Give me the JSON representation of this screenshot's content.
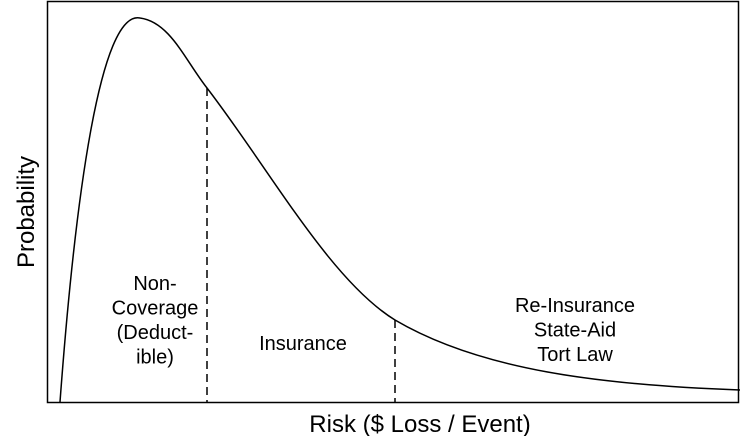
{
  "axes": {
    "x_label": "Risk ($ Loss / Event)",
    "y_label": "Probability"
  },
  "regions": [
    {
      "lines": [
        "Non-",
        "Coverage",
        "(Deduct-",
        "ible)"
      ]
    },
    {
      "lines": [
        "Insurance"
      ]
    },
    {
      "lines": [
        "Re-Insurance",
        "State-Aid",
        "Tort Law"
      ]
    }
  ]
}
